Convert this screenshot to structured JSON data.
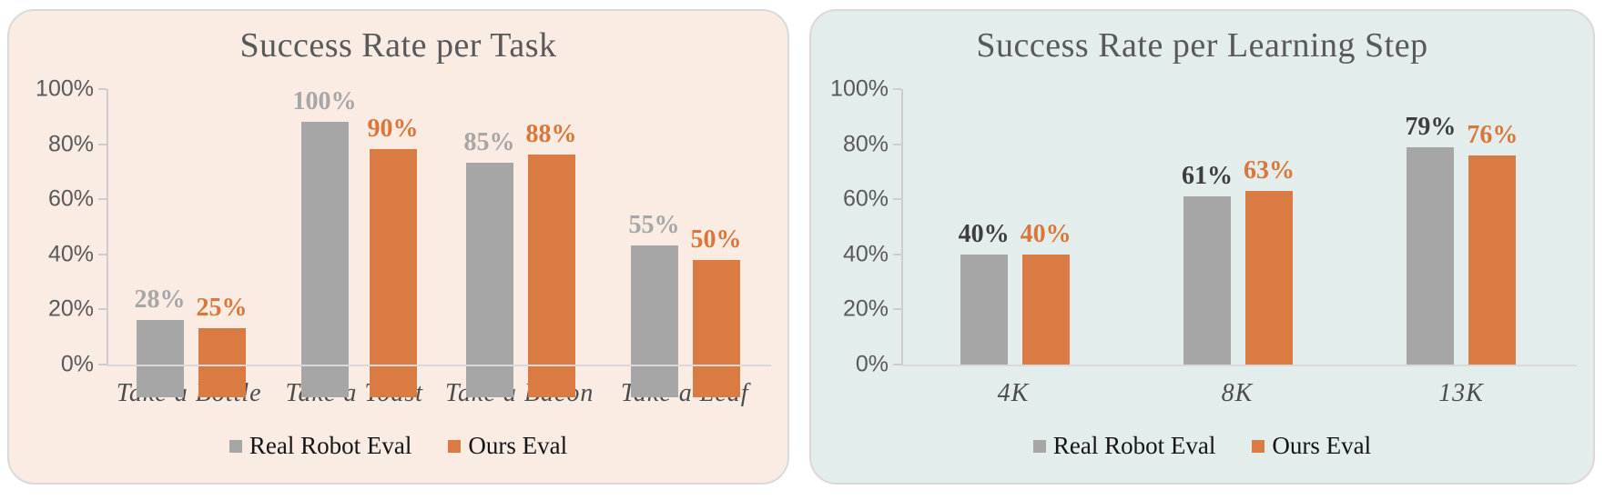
{
  "chart_data": [
    {
      "type": "bar",
      "title": "Success Rate per Task",
      "categories": [
        "Take a Bottle",
        "Take a Toast",
        "Take a Bacon",
        "Take a Leaf"
      ],
      "series": [
        {
          "name": "Real Robot Eval",
          "values": [
            28,
            100,
            85,
            55
          ],
          "labels": [
            "28%",
            "100%",
            "85%",
            "55%"
          ],
          "bar_color": "#a6a6a6",
          "label_color": "#a6a6a6"
        },
        {
          "name": "Ours Eval",
          "values": [
            25,
            90,
            88,
            50
          ],
          "labels": [
            "25%",
            "90%",
            "88%",
            "50%"
          ],
          "bar_color": "#d97b43",
          "label_color": "#d9763a"
        }
      ],
      "y_ticks": [
        "100%",
        "80%",
        "60%",
        "40%",
        "20%",
        "0%"
      ],
      "ylim": [
        0,
        100
      ],
      "grid": false,
      "legend_position": "bottom",
      "panel_background": "#faece3",
      "title_color": "#595959"
    },
    {
      "type": "bar",
      "title": "Success Rate per Learning Step",
      "categories": [
        "4K",
        "8K",
        "13K"
      ],
      "series": [
        {
          "name": "Real Robot Eval",
          "values": [
            40,
            61,
            79
          ],
          "labels": [
            "40%",
            "61%",
            "79%"
          ],
          "bar_color": "#a6a6a6",
          "label_color": "#3d3d3d"
        },
        {
          "name": "Ours Eval",
          "values": [
            40,
            63,
            76
          ],
          "labels": [
            "40%",
            "63%",
            "76%"
          ],
          "bar_color": "#d97b43",
          "label_color": "#d9763a"
        }
      ],
      "y_ticks": [
        "100%",
        "80%",
        "60%",
        "40%",
        "20%",
        "0%"
      ],
      "ylim": [
        0,
        100
      ],
      "grid": false,
      "legend_position": "bottom",
      "panel_background": "#e3eeec",
      "title_color": "#595959"
    }
  ]
}
